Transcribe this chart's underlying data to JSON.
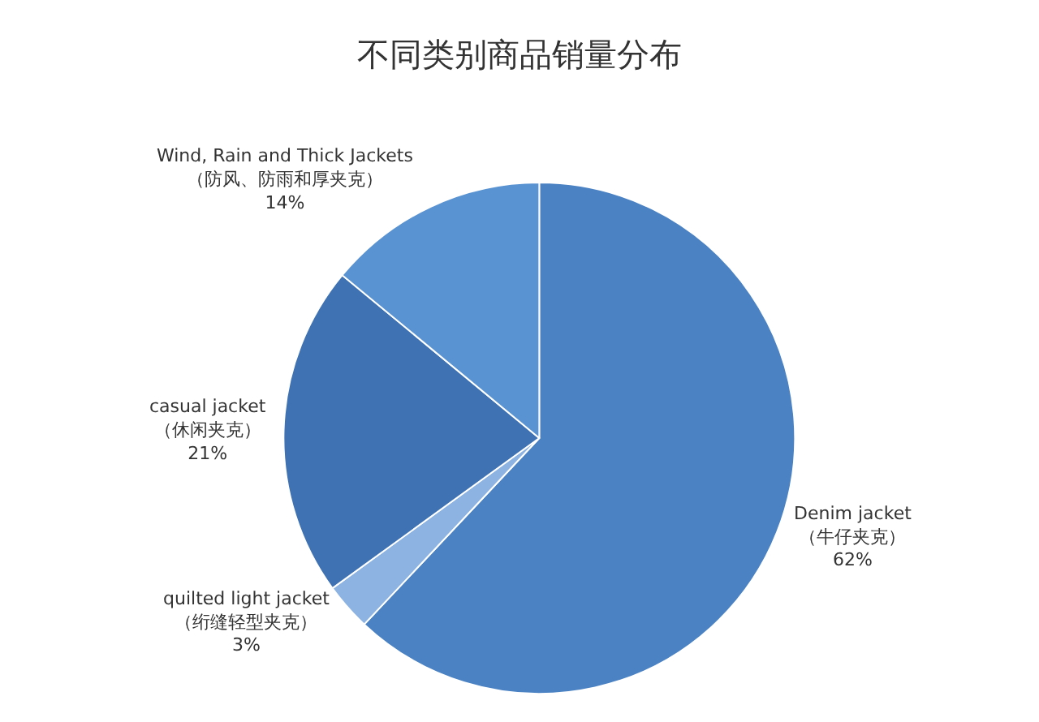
{
  "chart_data": {
    "type": "pie",
    "title": "不同类别商品销量分布",
    "categories": [
      "Denim jacket\n（牛仔夹克）",
      "quilted light jacket\n（绗缝轻型夹克）",
      "casual jacket\n（休闲夹克）",
      "Wind, Rain and Thick Jackets\n（防风、防雨和厚夹克）"
    ],
    "values": [
      62,
      3,
      21,
      14
    ],
    "value_labels": [
      "62%",
      "3%",
      "21%",
      "14%"
    ],
    "colors": [
      "#4a82c3",
      "#8db3e2",
      "#3f72b3",
      "#5a93d2"
    ],
    "legend": false
  }
}
